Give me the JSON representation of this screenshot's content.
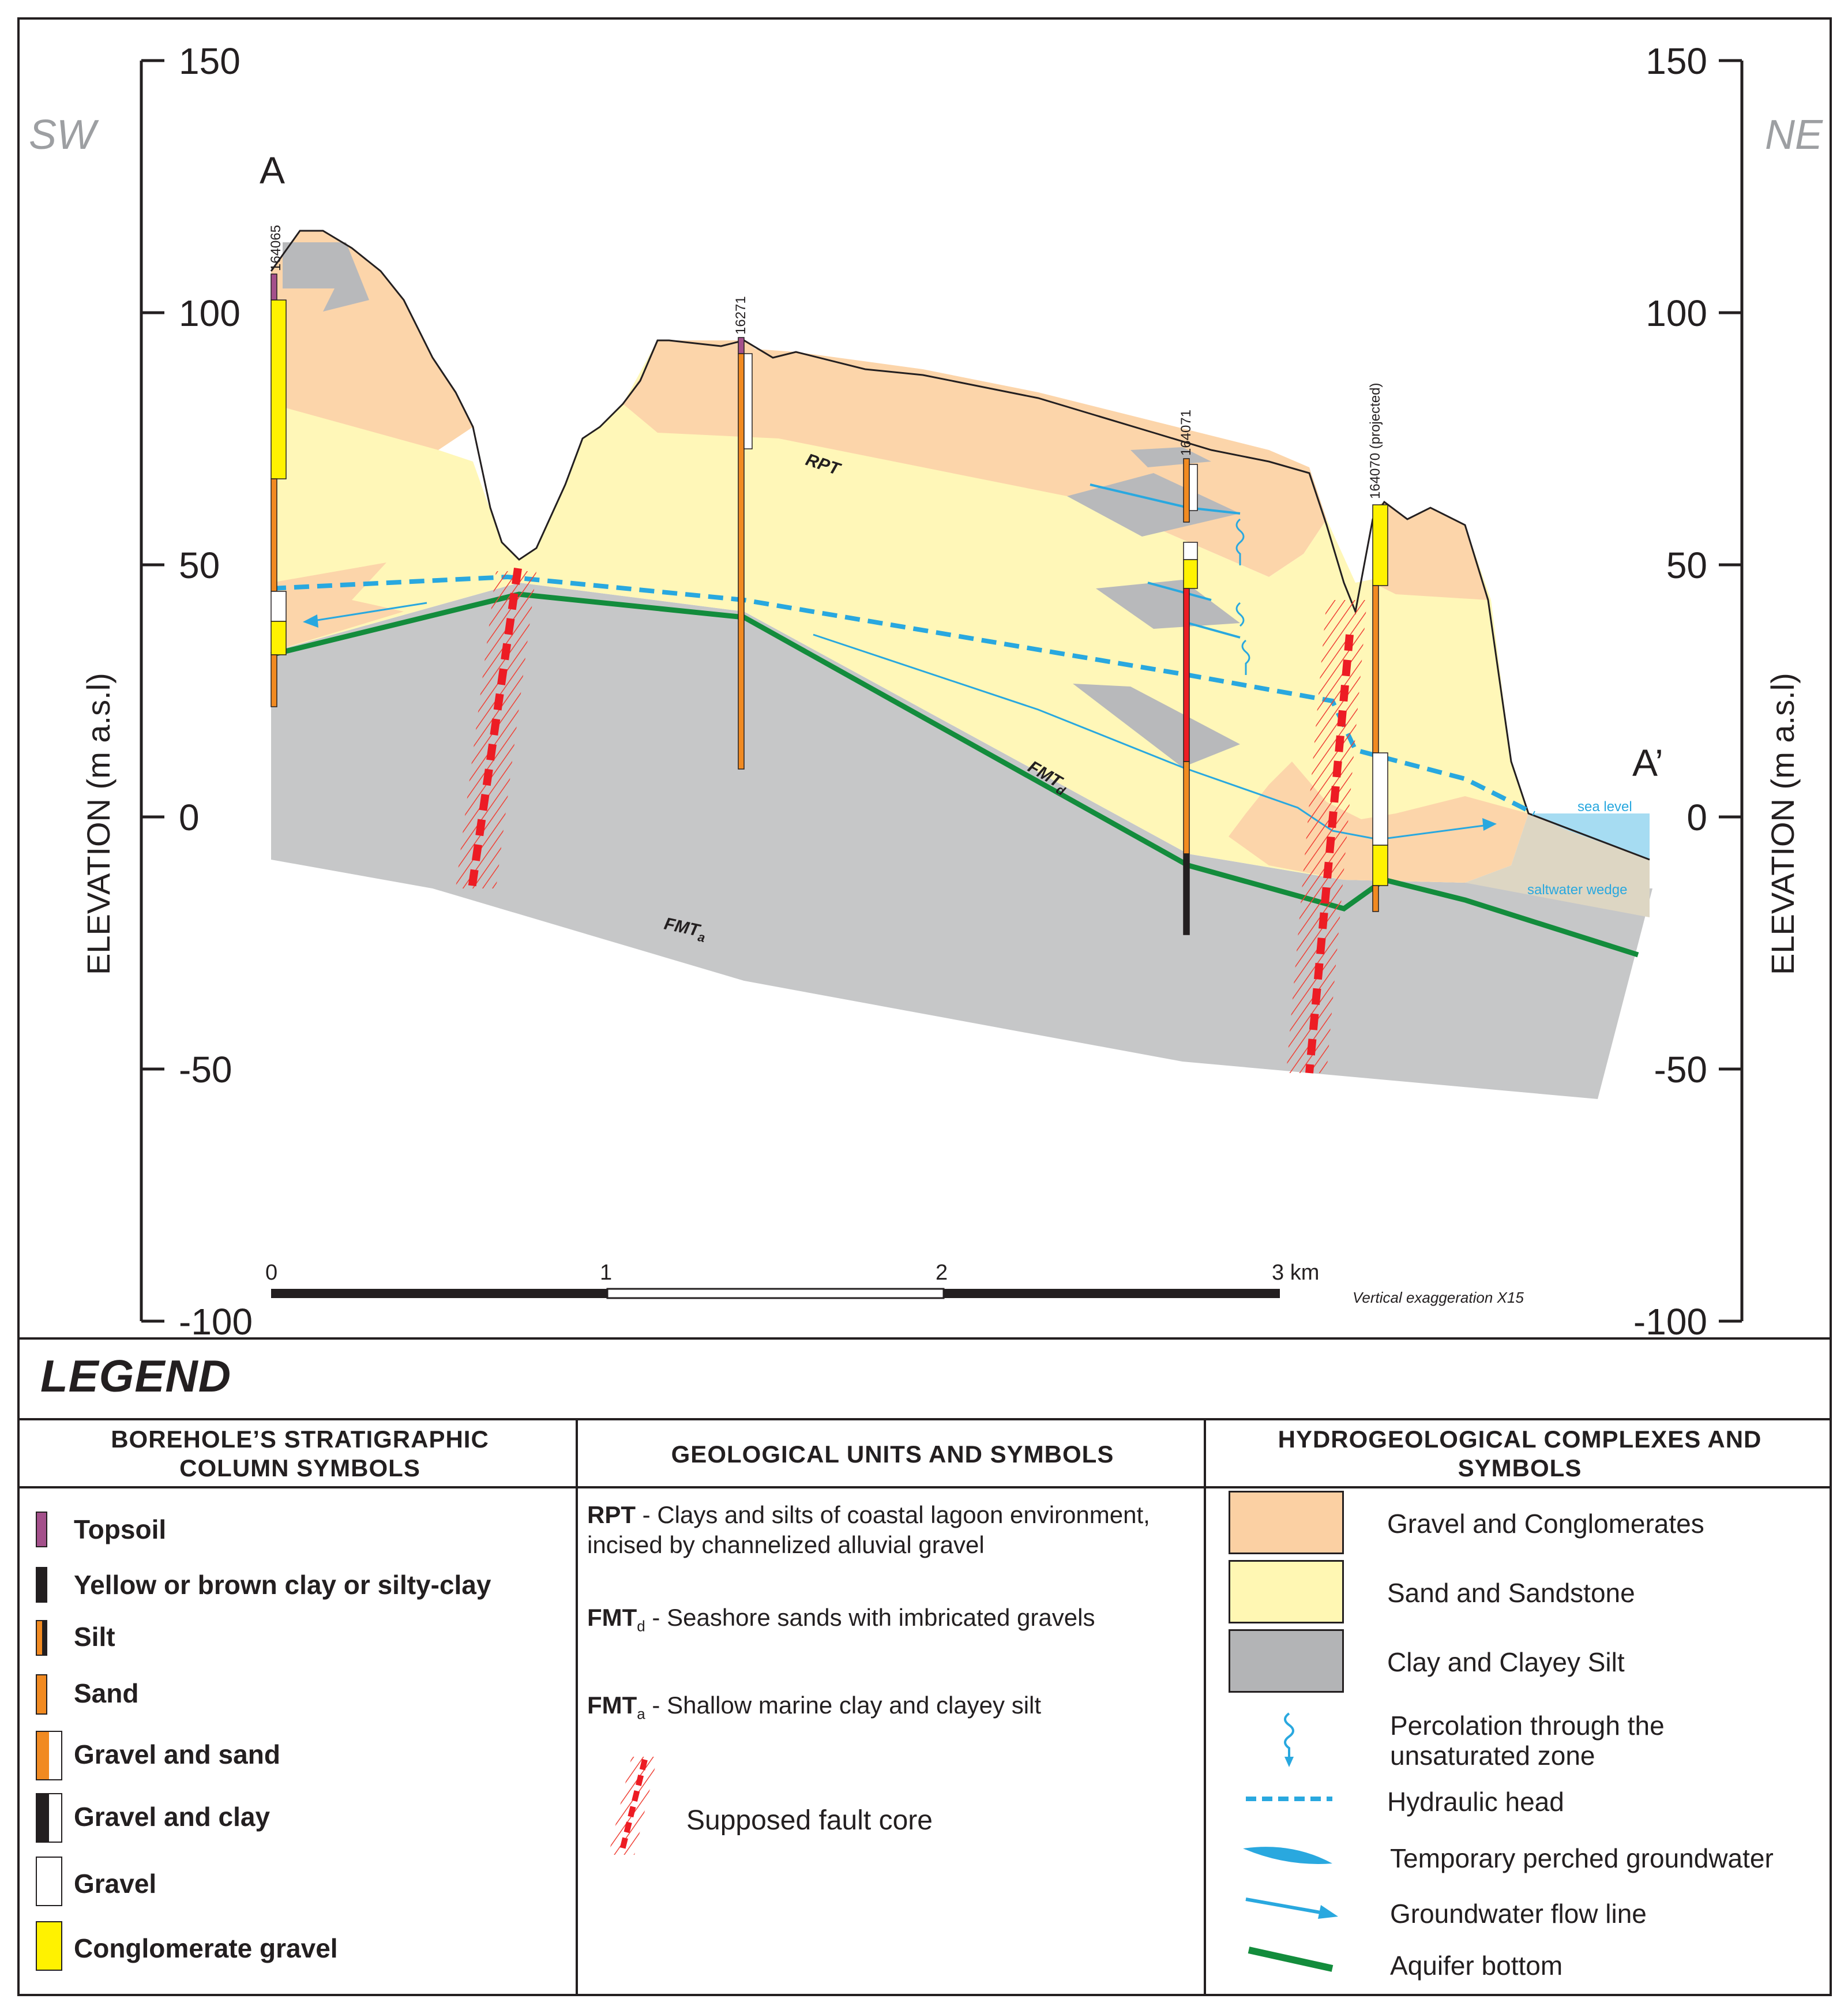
{
  "section": {
    "left_dir": "SW",
    "right_dir": "NE",
    "start_label": "A",
    "end_label": "A’",
    "elevation_label": "ELEVATION (m a.s.l)",
    "elevation_ticks": [
      "150",
      "100",
      "50",
      "0",
      "-50",
      "-100"
    ],
    "boreholes": [
      "164065",
      "16271",
      "164071",
      "164070 (projected)"
    ],
    "units": {
      "rpt": "RPT",
      "fmtd": "FMT",
      "fmtd_sub": "d",
      "fmta": "FMT",
      "fmta_sub": "a"
    },
    "sea_level": "sea level",
    "saltwater_wedge": "saltwater wedge",
    "scale_ticks": [
      "0",
      "1",
      "2",
      "3 km"
    ],
    "vertical_exaggeration": "Vertical exaggeration X15"
  },
  "legend": {
    "title": "LEGEND",
    "col1_title": "BOREHOLE’S STRATIGRAPHIC COLUMN SYMBOLS",
    "col2_title": "GEOLOGICAL UNITS AND SYMBOLS",
    "col3_title": "HYDROGEOLOGICAL COMPLEXES AND SYMBOLS",
    "borehole_symbols": [
      {
        "label": "Topsoil",
        "fill": "#a4508b"
      },
      {
        "label": "Yellow or brown clay or silty-clay",
        "fill": "#231f20"
      },
      {
        "label": "Silt",
        "fill": "#f18a21"
      },
      {
        "label": "Sand",
        "fill": "#f18a21"
      },
      {
        "label": "Gravel and sand",
        "fill": "#f18a21"
      },
      {
        "label": "Gravel and clay",
        "fill": "#231f20"
      },
      {
        "label": "Gravel",
        "fill": "#ffffff"
      },
      {
        "label": "Conglomerate gravel",
        "fill": "#fff200"
      }
    ],
    "geo_units": [
      {
        "code": "RPT",
        "sub": "",
        "text": " - Clays and silts of coastal lagoon environment, incised by channelized alluvial gravel"
      },
      {
        "code": "FMT",
        "sub": "d",
        "text": " - Seashore sands with imbricated gravels"
      },
      {
        "code": "FMT",
        "sub": "a",
        "text": " - Shallow marine clay and clayey silt"
      }
    ],
    "fault_label": "Supposed fault core",
    "hydro_complexes": [
      {
        "label": "Gravel and Conglomerates",
        "fill": "#fbd0a3"
      },
      {
        "label": "Sand and Sandstone",
        "fill": "#fff7b3"
      },
      {
        "label": "Clay and Clayey Silt",
        "fill": "#b3b4b6"
      }
    ],
    "hydro_symbols": [
      "Percolation through the unsaturated zone",
      "Hydraulic head",
      "Temporary perched groundwater",
      "Groundwater flow line",
      "Aquifer bottom"
    ]
  }
}
